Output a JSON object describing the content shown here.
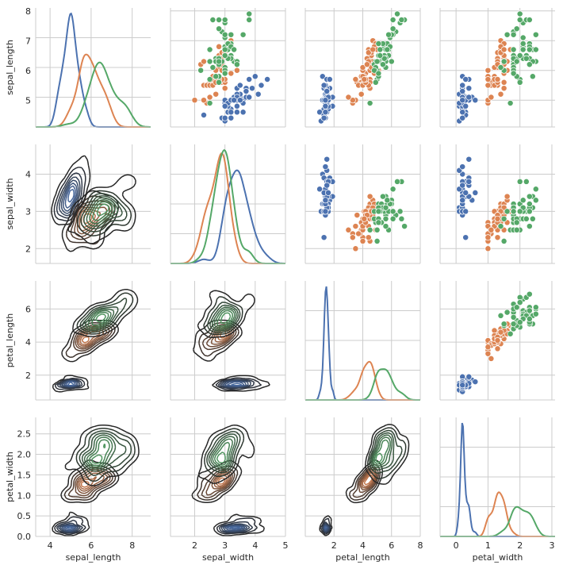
{
  "chart_data": {
    "type": "pairgrid",
    "grid": true,
    "variables": [
      "sepal_length",
      "sepal_width",
      "petal_length",
      "petal_width"
    ],
    "axes": {
      "sepal_length": {
        "lim": [
          4.1,
          8.1
        ],
        "ticks": [
          5,
          6,
          7,
          8
        ],
        "xlim": [
          3.3,
          8.9
        ],
        "xticks": [
          4,
          6,
          8
        ]
      },
      "sepal_width": {
        "lim": [
          1.6,
          4.8
        ],
        "ticks": [
          2,
          3,
          4
        ],
        "xlim": [
          1.2,
          5.0
        ],
        "xticks": [
          2,
          3,
          4,
          5
        ]
      },
      "petal_length": {
        "lim": [
          0.5,
          7.7
        ],
        "ticks": [
          2,
          4,
          6
        ],
        "xlim": [
          0.0,
          8.0
        ],
        "xticks": [
          2,
          4,
          6,
          8
        ]
      },
      "petal_width": {
        "lim": [
          0.0,
          2.9
        ],
        "ticks": [
          0.0,
          0.5,
          1.0,
          1.5,
          2.0,
          2.5
        ],
        "tick_labels": [
          "0.0",
          "0.5",
          "1.0",
          "1.5",
          "2.0",
          "2.5"
        ],
        "xlim": [
          -0.5,
          3.1
        ],
        "xticks": [
          0,
          1,
          2,
          3
        ]
      }
    },
    "upper": "scatter",
    "diag": "kde",
    "lower": "kde_contours",
    "series": [
      {
        "color": "#4c72b0",
        "contour_color": "#2e4a7e",
        "sepal_length": [
          5.1,
          4.9,
          4.7,
          4.6,
          5.0,
          5.4,
          4.6,
          5.0,
          4.4,
          4.9,
          5.4,
          4.8,
          4.8,
          4.3,
          5.8,
          5.7,
          5.4,
          5.1,
          5.7,
          5.1,
          5.4,
          5.1,
          4.6,
          5.1,
          4.8,
          5.0,
          5.0,
          5.2,
          5.2,
          4.7,
          4.8,
          5.4,
          5.2,
          5.5,
          4.9,
          5.0,
          5.5,
          4.9,
          4.4,
          5.1,
          5.0,
          4.5,
          4.4,
          5.0,
          5.1,
          4.8,
          5.1,
          4.6,
          5.3,
          5.0
        ],
        "sepal_width": [
          3.5,
          3.0,
          3.2,
          3.1,
          3.6,
          3.9,
          3.4,
          3.4,
          2.9,
          3.1,
          3.7,
          3.4,
          3.0,
          3.0,
          4.0,
          4.4,
          3.9,
          3.5,
          3.8,
          3.8,
          3.4,
          3.7,
          3.6,
          3.3,
          3.4,
          3.0,
          3.4,
          3.5,
          3.4,
          3.2,
          3.1,
          3.4,
          4.1,
          4.2,
          3.1,
          3.2,
          3.5,
          3.6,
          3.0,
          3.4,
          3.5,
          2.3,
          3.2,
          3.5,
          3.8,
          3.0,
          3.8,
          3.2,
          3.7,
          3.3
        ],
        "petal_length": [
          1.4,
          1.4,
          1.3,
          1.5,
          1.4,
          1.7,
          1.4,
          1.5,
          1.4,
          1.5,
          1.5,
          1.6,
          1.4,
          1.1,
          1.2,
          1.5,
          1.3,
          1.4,
          1.7,
          1.5,
          1.7,
          1.5,
          1.0,
          1.7,
          1.9,
          1.6,
          1.6,
          1.5,
          1.4,
          1.6,
          1.6,
          1.5,
          1.5,
          1.4,
          1.5,
          1.2,
          1.3,
          1.4,
          1.3,
          1.5,
          1.3,
          1.3,
          1.3,
          1.6,
          1.9,
          1.4,
          1.6,
          1.4,
          1.5,
          1.4
        ],
        "petal_width": [
          0.2,
          0.2,
          0.2,
          0.2,
          0.2,
          0.4,
          0.3,
          0.2,
          0.2,
          0.1,
          0.2,
          0.2,
          0.1,
          0.1,
          0.2,
          0.4,
          0.4,
          0.3,
          0.3,
          0.3,
          0.2,
          0.4,
          0.2,
          0.5,
          0.2,
          0.2,
          0.4,
          0.2,
          0.2,
          0.2,
          0.2,
          0.4,
          0.1,
          0.2,
          0.2,
          0.2,
          0.2,
          0.1,
          0.2,
          0.2,
          0.3,
          0.3,
          0.2,
          0.6,
          0.4,
          0.3,
          0.2,
          0.2,
          0.2,
          0.2
        ]
      },
      {
        "color": "#dd8452",
        "contour_color": "#7a4a2e",
        "sepal_length": [
          7.0,
          6.4,
          6.9,
          5.5,
          6.5,
          5.7,
          6.3,
          4.9,
          6.6,
          5.2,
          5.0,
          5.9,
          6.0,
          6.1,
          5.6,
          6.7,
          5.6,
          5.8,
          6.2,
          5.6,
          5.9,
          6.1,
          6.3,
          6.1,
          6.4,
          6.6,
          6.8,
          6.7,
          6.0,
          5.7,
          5.5,
          5.5,
          5.8,
          6.0,
          5.4,
          6.0,
          6.7,
          6.3,
          5.6,
          5.5,
          5.5,
          6.1,
          5.8,
          5.0,
          5.6,
          5.7,
          5.7,
          6.2,
          5.1,
          5.7
        ],
        "sepal_width": [
          3.2,
          3.2,
          3.1,
          2.3,
          2.8,
          2.8,
          3.3,
          2.4,
          2.9,
          2.7,
          2.0,
          3.0,
          2.2,
          2.9,
          2.9,
          3.1,
          3.0,
          2.7,
          2.2,
          2.5,
          3.2,
          2.8,
          2.5,
          2.8,
          2.9,
          3.0,
          2.8,
          3.0,
          2.9,
          2.6,
          2.4,
          2.4,
          2.7,
          2.7,
          3.0,
          3.4,
          3.1,
          2.3,
          3.0,
          2.5,
          2.6,
          3.0,
          2.6,
          2.3,
          2.7,
          3.0,
          2.9,
          2.9,
          2.5,
          2.8
        ],
        "petal_length": [
          4.7,
          4.5,
          4.9,
          4.0,
          4.6,
          4.5,
          4.7,
          3.3,
          4.6,
          3.9,
          3.5,
          4.2,
          4.0,
          4.7,
          3.6,
          4.4,
          4.5,
          4.1,
          4.5,
          3.9,
          4.8,
          4.0,
          4.9,
          4.7,
          4.3,
          4.4,
          4.8,
          5.0,
          4.5,
          3.5,
          3.8,
          3.7,
          3.9,
          5.1,
          4.5,
          4.5,
          4.7,
          4.4,
          4.1,
          4.0,
          4.4,
          4.6,
          4.0,
          3.3,
          4.2,
          4.2,
          4.2,
          4.3,
          3.0,
          4.1
        ],
        "petal_width": [
          1.4,
          1.5,
          1.5,
          1.3,
          1.5,
          1.3,
          1.6,
          1.0,
          1.3,
          1.4,
          1.0,
          1.5,
          1.0,
          1.4,
          1.3,
          1.4,
          1.5,
          1.0,
          1.5,
          1.1,
          1.8,
          1.3,
          1.5,
          1.2,
          1.3,
          1.4,
          1.4,
          1.7,
          1.5,
          1.0,
          1.1,
          1.0,
          1.2,
          1.6,
          1.5,
          1.6,
          1.5,
          1.3,
          1.3,
          1.3,
          1.2,
          1.4,
          1.2,
          1.0,
          1.3,
          1.2,
          1.3,
          1.3,
          1.1,
          1.3
        ]
      },
      {
        "color": "#55a868",
        "contour_color": "#2f6b3d",
        "sepal_length": [
          6.3,
          5.8,
          7.1,
          6.3,
          6.5,
          7.6,
          4.9,
          7.3,
          6.7,
          7.2,
          6.5,
          6.4,
          6.8,
          5.7,
          5.8,
          6.4,
          6.5,
          7.7,
          7.7,
          6.0,
          6.9,
          5.6,
          7.7,
          6.3,
          6.7,
          7.2,
          6.2,
          6.1,
          6.4,
          7.2,
          7.4,
          7.9,
          6.4,
          6.3,
          6.1,
          7.7,
          6.3,
          6.4,
          6.0,
          6.9,
          6.7,
          6.9,
          5.8,
          6.8,
          6.7,
          6.7,
          6.3,
          6.5,
          6.2,
          5.9
        ],
        "sepal_width": [
          3.3,
          2.7,
          3.0,
          2.9,
          3.0,
          3.0,
          2.5,
          2.9,
          2.5,
          3.6,
          3.2,
          2.7,
          3.0,
          2.5,
          2.8,
          3.2,
          3.0,
          3.8,
          2.6,
          2.2,
          3.2,
          2.8,
          2.8,
          2.7,
          3.3,
          3.2,
          2.8,
          3.0,
          2.8,
          3.0,
          2.8,
          3.8,
          2.8,
          2.8,
          2.6,
          3.0,
          3.4,
          3.1,
          3.0,
          3.1,
          3.1,
          3.1,
          2.7,
          3.2,
          3.3,
          3.0,
          2.5,
          3.0,
          3.4,
          3.0
        ],
        "petal_length": [
          6.0,
          5.1,
          5.9,
          5.6,
          5.8,
          6.6,
          4.5,
          6.3,
          5.8,
          6.1,
          5.1,
          5.3,
          5.5,
          5.0,
          5.1,
          5.3,
          5.5,
          6.7,
          6.9,
          5.0,
          5.7,
          4.9,
          6.7,
          4.9,
          5.7,
          6.0,
          4.8,
          4.9,
          5.6,
          5.8,
          6.1,
          6.4,
          5.6,
          5.1,
          5.6,
          6.1,
          5.6,
          5.5,
          4.8,
          5.4,
          5.6,
          5.1,
          5.1,
          5.9,
          5.7,
          5.2,
          5.0,
          5.2,
          5.4,
          5.1
        ],
        "petal_width": [
          2.5,
          1.9,
          2.1,
          1.8,
          2.2,
          2.1,
          1.7,
          1.8,
          1.8,
          2.5,
          2.0,
          1.9,
          2.1,
          2.0,
          2.4,
          2.3,
          1.8,
          2.2,
          2.3,
          1.5,
          2.3,
          2.0,
          2.0,
          1.8,
          2.1,
          1.8,
          1.8,
          1.8,
          2.1,
          1.6,
          1.9,
          2.0,
          2.2,
          1.5,
          1.4,
          2.3,
          2.4,
          1.8,
          1.8,
          2.1,
          2.4,
          2.3,
          1.9,
          2.3,
          2.5,
          2.3,
          1.9,
          2.0,
          2.3,
          1.8
        ]
      }
    ]
  }
}
